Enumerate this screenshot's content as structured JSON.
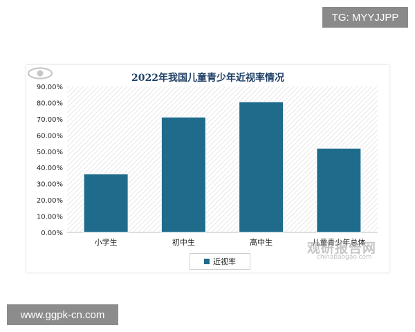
{
  "badges": {
    "telegram": "TG: MYYJJPP",
    "site": "www.ggpk-cn.com"
  },
  "watermark": {
    "name": "观研报告网",
    "site": "chinabaogao.com"
  },
  "colors": {
    "bar": "#1f6b8c",
    "title": "#1f3f66",
    "text": "#222222"
  },
  "chart_data": {
    "type": "bar",
    "title": "2022年我国儿童青少年近视率情况",
    "categories": [
      "小学生",
      "初中生",
      "高中生",
      "儿童青少年总体"
    ],
    "series": [
      {
        "name": "近视率",
        "values": [
          36.0,
          71.1,
          80.5,
          51.9
        ]
      }
    ],
    "ylim": [
      0,
      90
    ],
    "yticks": [
      "0.00%",
      "10.00%",
      "20.00%",
      "30.00%",
      "40.00%",
      "50.00%",
      "60.00%",
      "70.00%",
      "80.00%",
      "90.00%"
    ],
    "value_unit": "%",
    "legend_position": "bottom",
    "grid": false,
    "background": "hatched"
  }
}
